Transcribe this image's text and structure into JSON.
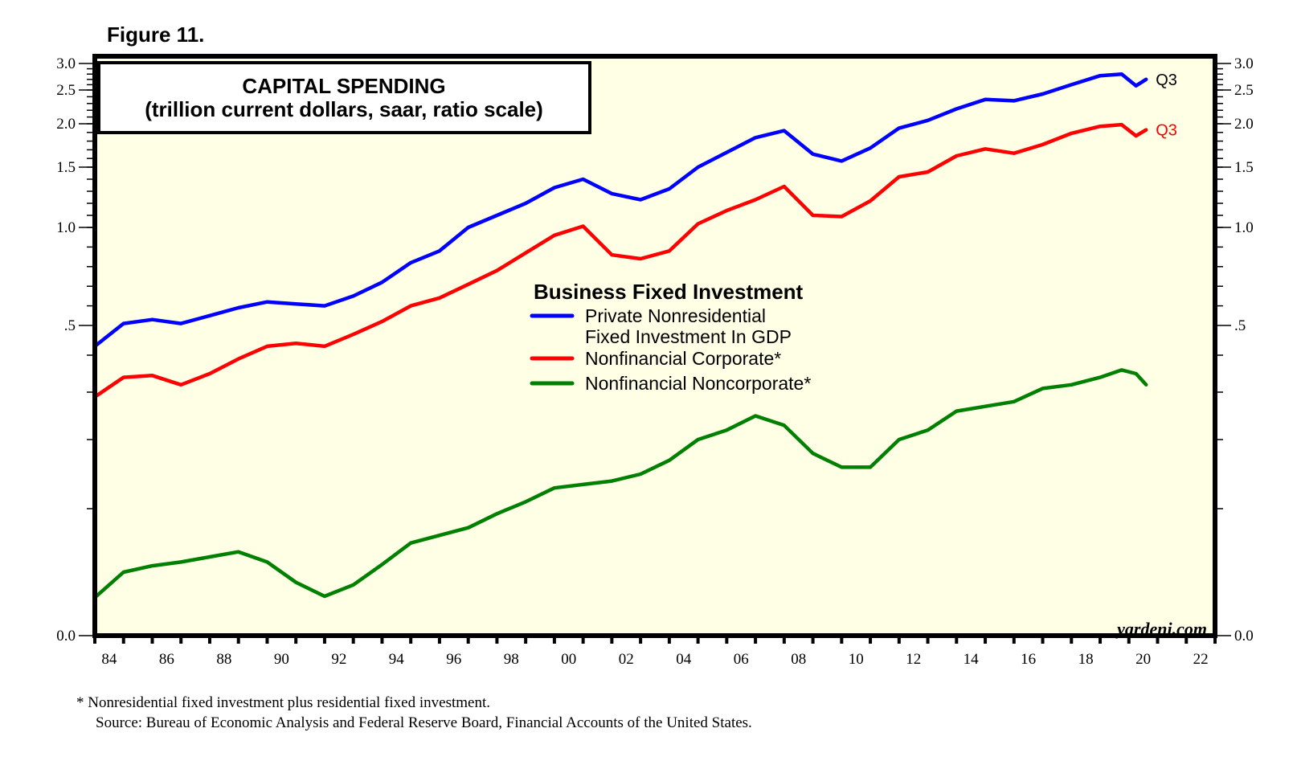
{
  "figure_label": "Figure 11.",
  "chart_data": {
    "type": "line",
    "title": "CAPITAL SPENDING",
    "subtitle": "(trillion current dollars, saar, ratio scale)",
    "xlabel": "",
    "ylabel": "",
    "y_scale": "ratio",
    "xlim": [
      1984,
      2023
    ],
    "ylim": [
      0.0,
      3.0
    ],
    "x_tick_labels": [
      "84",
      "86",
      "88",
      "90",
      "92",
      "94",
      "96",
      "98",
      "00",
      "02",
      "04",
      "06",
      "08",
      "10",
      "12",
      "14",
      "16",
      "18",
      "20",
      "22"
    ],
    "y_tick_labels_left": [
      "3.0",
      "2.5",
      "2.0",
      "1.5",
      "1.0",
      ".5",
      "0.0"
    ],
    "y_tick_labels_right": [
      "3.0",
      "2.5",
      "2.0",
      "1.5",
      "1.0",
      ".5",
      "0.0"
    ],
    "y_tick_values": [
      3.0,
      2.5,
      2.0,
      1.5,
      1.0,
      0.5,
      0.0
    ],
    "legend": {
      "title": "Business Fixed Investment",
      "placement": "center",
      "entries": [
        {
          "label_lines": [
            "Private Nonresidential",
            "Fixed Investment In GDP"
          ],
          "color": "#0000ff"
        },
        {
          "label_lines": [
            "Nonfinancial Corporate*"
          ],
          "color": "#ff0000"
        },
        {
          "label_lines": [
            "Nonfinancial Noncorporate*"
          ],
          "color": "#008000"
        }
      ]
    },
    "x": [
      1984,
      1985,
      1986,
      1987,
      1988,
      1989,
      1990,
      1991,
      1992,
      1993,
      1994,
      1995,
      1996,
      1997,
      1998,
      1999,
      2000,
      2001,
      2002,
      2003,
      2004,
      2005,
      2006,
      2007,
      2008,
      2009,
      2010,
      2011,
      2012,
      2013,
      2014,
      2015,
      2016,
      2017,
      2018,
      2019,
      2019.75,
      2020.25,
      2020.6
    ],
    "series": [
      {
        "name": "Private Nonresidential Fixed Investment In GDP",
        "color": "#0000ff",
        "end_label": "Q3",
        "values": [
          0.43,
          0.51,
          0.53,
          0.51,
          0.55,
          0.59,
          0.62,
          0.61,
          0.6,
          0.65,
          0.72,
          0.82,
          0.88,
          1.0,
          1.1,
          1.2,
          1.33,
          1.4,
          1.28,
          1.23,
          1.32,
          1.5,
          1.67,
          1.84,
          1.92,
          1.65,
          1.57,
          1.72,
          1.95,
          2.05,
          2.22,
          2.36,
          2.34,
          2.44,
          2.6,
          2.77,
          2.8,
          2.58,
          2.7
        ]
      },
      {
        "name": "Nonfinancial Corporate*",
        "color": "#ff0000",
        "end_label": "Q3",
        "values": [
          0.29,
          0.34,
          0.345,
          0.32,
          0.35,
          0.39,
          0.43,
          0.44,
          0.43,
          0.47,
          0.52,
          0.6,
          0.64,
          0.71,
          0.78,
          0.87,
          0.96,
          1.01,
          0.86,
          0.84,
          0.88,
          1.03,
          1.14,
          1.23,
          1.34,
          1.1,
          1.09,
          1.22,
          1.42,
          1.46,
          1.63,
          1.71,
          1.66,
          1.76,
          1.89,
          1.97,
          1.99,
          1.86,
          1.93
        ]
      },
      {
        "name": "Nonfinancial Noncorporate*",
        "color": "#008000",
        "end_label": "",
        "values": [
          0.03,
          0.05,
          0.055,
          0.058,
          0.062,
          0.066,
          0.058,
          0.042,
          0.031,
          0.04,
          0.056,
          0.073,
          0.079,
          0.085,
          0.096,
          0.11,
          0.13,
          0.135,
          0.14,
          0.15,
          0.17,
          0.2,
          0.22,
          0.25,
          0.23,
          0.18,
          0.16,
          0.16,
          0.2,
          0.22,
          0.26,
          0.27,
          0.28,
          0.31,
          0.32,
          0.34,
          0.36,
          0.35,
          0.32
        ]
      }
    ],
    "annotations": [
      "yardeni.com"
    ]
  },
  "footnotes": {
    "note": "*  Nonresidential fixed investment plus residential fixed investment.",
    "source": "Source: Bureau of Economic Analysis and Federal Reserve Board, Financial Accounts of the United States."
  },
  "colors": {
    "plot_background": "#ffffe6",
    "frame": "#000000"
  }
}
